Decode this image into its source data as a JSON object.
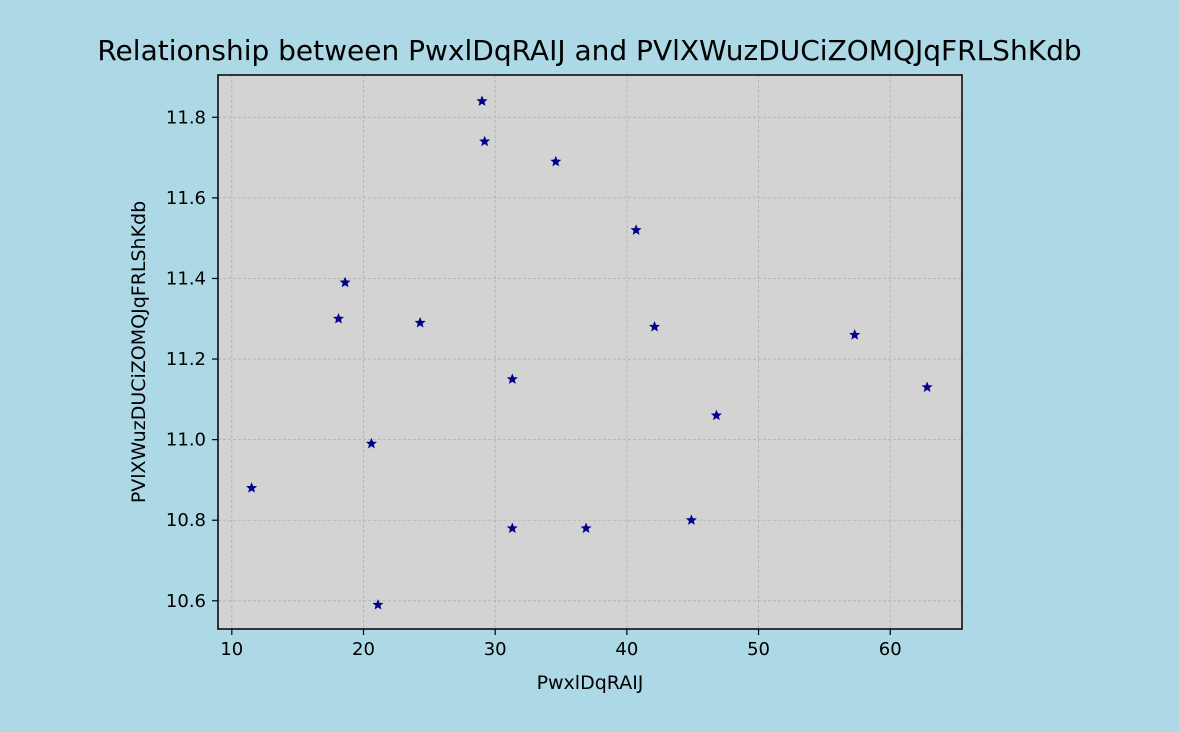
{
  "chart_data": {
    "type": "scatter",
    "title": "Relationship between PwxlDqRAIJ and PVlXWuzDUCiZOMQJqFRLShKdb",
    "xlabel": "PwxlDqRAIJ",
    "ylabel": "PVlXWuzDUCiZOMQJqFRLShKdb",
    "xlim": [
      8.95,
      65.45
    ],
    "ylim": [
      10.53,
      11.905
    ],
    "xticks": [
      10,
      20,
      30,
      40,
      50,
      60
    ],
    "yticks": [
      10.6,
      10.8,
      11.0,
      11.2,
      11.4,
      11.6,
      11.8
    ],
    "xtick_labels": [
      "10",
      "20",
      "30",
      "40",
      "50",
      "60"
    ],
    "ytick_labels": [
      "10.6",
      "10.8",
      "11.0",
      "11.2",
      "11.4",
      "11.6",
      "11.8"
    ],
    "grid": true,
    "marker": "star",
    "colors": {
      "background": "#add8e6",
      "plot_area": "#d3d3d3",
      "marker": "#00008b",
      "grid": "#b0b0b0"
    },
    "points": [
      {
        "x": 11.5,
        "y": 10.88
      },
      {
        "x": 18.1,
        "y": 11.3
      },
      {
        "x": 18.6,
        "y": 11.39
      },
      {
        "x": 20.6,
        "y": 10.99
      },
      {
        "x": 21.1,
        "y": 10.59
      },
      {
        "x": 24.3,
        "y": 11.29
      },
      {
        "x": 29.0,
        "y": 11.84
      },
      {
        "x": 29.2,
        "y": 11.74
      },
      {
        "x": 31.3,
        "y": 11.15
      },
      {
        "x": 31.3,
        "y": 10.78
      },
      {
        "x": 34.6,
        "y": 11.69
      },
      {
        "x": 36.9,
        "y": 10.78
      },
      {
        "x": 40.7,
        "y": 11.52
      },
      {
        "x": 42.1,
        "y": 11.28
      },
      {
        "x": 44.9,
        "y": 10.8
      },
      {
        "x": 46.8,
        "y": 11.06
      },
      {
        "x": 57.3,
        "y": 11.26
      },
      {
        "x": 62.8,
        "y": 11.13
      }
    ]
  }
}
